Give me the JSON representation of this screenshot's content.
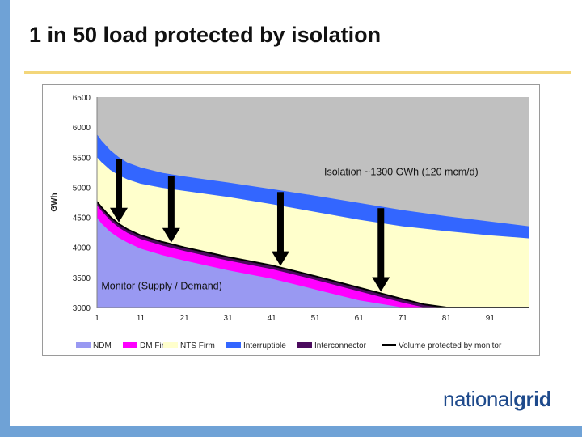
{
  "slide": {
    "title": "1 in 50 load protected by isolation",
    "logo_part1": "national",
    "logo_part2": "grid"
  },
  "colors": {
    "accent_bar": "#6fa2d6",
    "title_rule": "#f3d67a",
    "logo": "#1e4a8c"
  },
  "chart_data": {
    "type": "area",
    "ylabel": "GWh",
    "xlabel": "",
    "ylim": [
      3000,
      6500
    ],
    "xlim": [
      1,
      100
    ],
    "yticks": [
      3000,
      3500,
      4000,
      4500,
      5000,
      5500,
      6000,
      6500
    ],
    "xticks": [
      1,
      11,
      21,
      31,
      41,
      51,
      61,
      71,
      81,
      91
    ],
    "x": [
      1,
      2,
      4,
      6,
      8,
      11,
      16,
      21,
      31,
      41,
      51,
      61,
      71,
      76,
      81,
      91,
      100
    ],
    "series": [
      {
        "name": "NDM",
        "color": "#9999f2",
        "cumulative": [
          4500,
          4400,
          4260,
          4160,
          4080,
          3980,
          3870,
          3780,
          3620,
          3480,
          3300,
          3120,
          2940,
          2860,
          2780,
          2640,
          2520
        ]
      },
      {
        "name": "DM Firm",
        "color": "#ff00ff",
        "cumulative": [
          4700,
          4610,
          4450,
          4330,
          4240,
          4140,
          4030,
          3940,
          3780,
          3640,
          3460,
          3270,
          3080,
          2990,
          2900,
          2760,
          2640
        ]
      },
      {
        "name": "NTS Firm",
        "color": "#ffffcc",
        "cumulative": [
          5500,
          5420,
          5290,
          5200,
          5130,
          5060,
          4990,
          4940,
          4840,
          4720,
          4590,
          4460,
          4350,
          4310,
          4270,
          4200,
          4150
        ]
      },
      {
        "name": "Interruptible",
        "color": "#3366ff",
        "cumulative": [
          5880,
          5780,
          5620,
          5500,
          5410,
          5330,
          5240,
          5180,
          5080,
          4970,
          4860,
          4740,
          4620,
          4570,
          4520,
          4430,
          4350
        ]
      },
      {
        "name": "Interconnector",
        "color": "#4b0b5e",
        "cumulative": [
          4760,
          4670,
          4510,
          4390,
          4300,
          4200,
          4090,
          4000,
          3840,
          3700,
          3520,
          3330,
          3140,
          3050,
          2960,
          2820,
          2700
        ]
      }
    ],
    "monitor_line": {
      "name": "Volume protected by monitor",
      "values": [
        4760,
        4670,
        4510,
        4390,
        4300,
        4200,
        4090,
        4000,
        3840,
        3700,
        3520,
        3330,
        3140,
        3050,
        2960,
        2820,
        2700
      ]
    },
    "upper_area_color": "#c0c0c0",
    "arrows_x": [
      6,
      18,
      43,
      66
    ],
    "annotations": [
      {
        "text": "Isolation ~1300 GWh (120 mcm/d)",
        "x": 53,
        "y": 5200
      },
      {
        "text": "Monitor (Supply / Demand)",
        "x": 2,
        "y": 3300
      }
    ],
    "legend_position": "bottom",
    "grid": false
  }
}
